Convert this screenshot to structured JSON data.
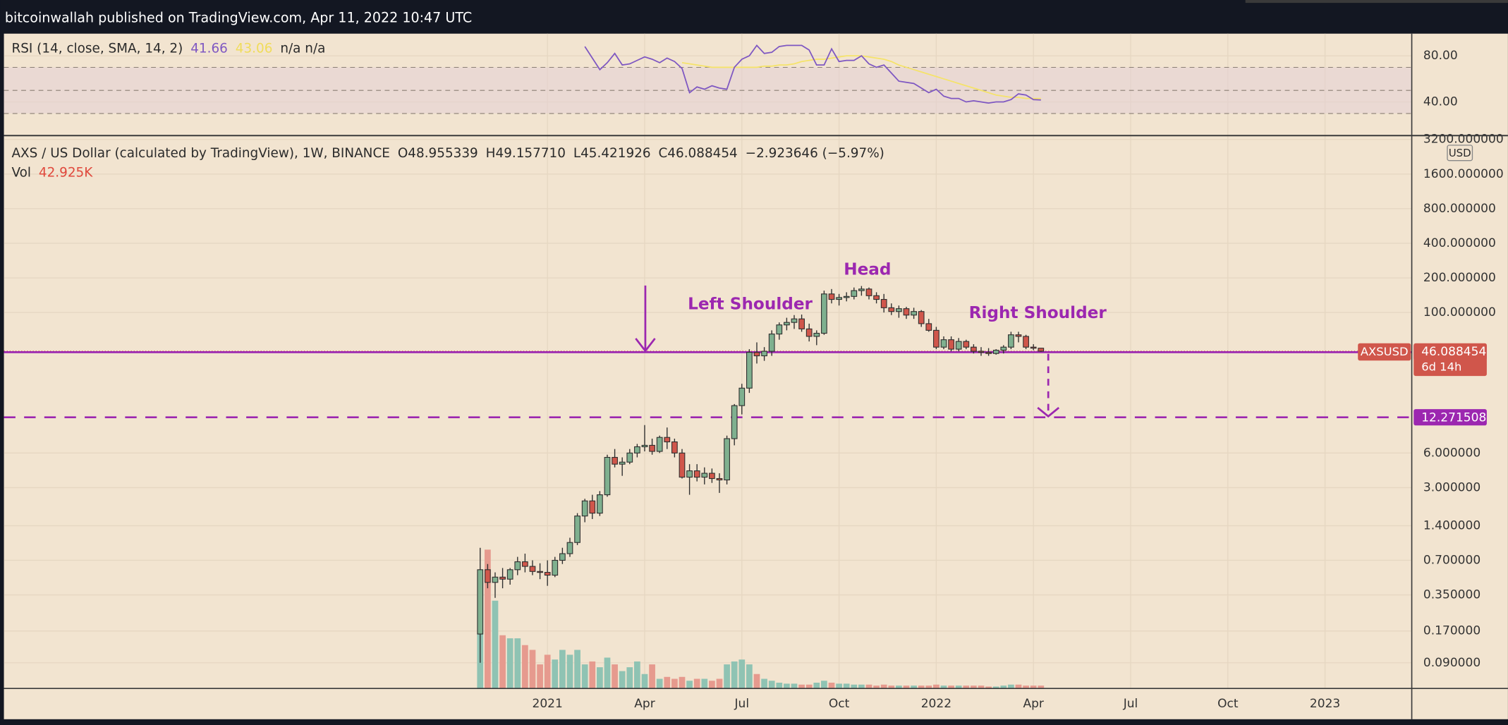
{
  "header": {
    "publisher": "bitcoinwallah published on TradingView.com, Apr 11, 2022 10:47 UTC"
  },
  "chart_data": {
    "type": "candlestick",
    "title": "AXS / US Dollar (calculated by TradingView), 1W, BINANCE",
    "ohlc_text": [
      "O48.955339",
      "H49.157710",
      "L45.421926",
      "C46.088454",
      "−2.923646 (−5.97%)"
    ],
    "volume_title": "Vol",
    "volume_text": "42.925K",
    "rsi_title": "RSI (14, close, SMA, 14, 2)",
    "rsi_na": "n/a  n/a",
    "symbol": "AXSUSD",
    "countdown": "6d 14h",
    "currency": "USD",
    "annotations": [
      "Head",
      "Left Shoulder",
      "Right Shoulder"
    ],
    "log_scale": true,
    "grid": true,
    "up_color": "#7fb08f",
    "down_color": "#d0564b",
    "up_volume_color": "#8fc3b3",
    "down_volume_color": "#e69a8e",
    "rsi_color": "#7e57c2",
    "sma_color": "#f5e36a",
    "level_color": "#9c27b0",
    "price_color": "#d0564b",
    "xlim": [
      -63.7,
      124.6
    ],
    "xticks": [
      {
        "value": 9,
        "label": "2021"
      },
      {
        "value": 22,
        "label": "Apr"
      },
      {
        "value": 35,
        "label": "Jul"
      },
      {
        "value": 48,
        "label": "Oct"
      },
      {
        "value": 61,
        "label": "2022"
      },
      {
        "value": 74,
        "label": "Apr"
      },
      {
        "value": 87,
        "label": "Jul"
      },
      {
        "value": 100,
        "label": "Oct"
      },
      {
        "value": 113,
        "label": "2023"
      }
    ],
    "ylim": [
      0.0538,
      3390
    ],
    "yticks": [
      {
        "value": 3200,
        "label": "3200.000000"
      },
      {
        "value": 1600,
        "label": "1600.000000"
      },
      {
        "value": 800,
        "label": "800.000000"
      },
      {
        "value": 400,
        "label": "400.000000"
      },
      {
        "value": 200,
        "label": "200.000000"
      },
      {
        "value": 100,
        "label": "100.000000"
      },
      {
        "value": 6,
        "label": "6.000000"
      },
      {
        "value": 3,
        "label": "3.000000"
      },
      {
        "value": 1.4,
        "label": "1.400000"
      },
      {
        "value": 0.7,
        "label": "0.700000"
      },
      {
        "value": 0.35,
        "label": "0.350000"
      },
      {
        "value": 0.17,
        "label": "0.170000"
      },
      {
        "value": 0.09,
        "label": "0.090000"
      }
    ],
    "y2lim": [
      0,
      8300000
    ],
    "rsi_lim": [
      11.7,
      99.2
    ],
    "rsi_ticks": [
      {
        "value": 80,
        "label": "80.00"
      },
      {
        "value": 40,
        "label": "40.00"
      }
    ],
    "rsi_levels": [
      70,
      50,
      30
    ],
    "neckline": 45.169175,
    "target": 12.271508,
    "open": [
      0.16,
      0.58,
      0.45,
      0.5,
      0.48,
      0.58,
      0.68,
      0.62,
      0.56,
      0.55,
      0.52,
      0.7,
      0.8,
      1.0,
      1.7,
      2.3,
      1.8,
      2.6,
      5.5,
      4.8,
      5.0,
      6.0,
      6.8,
      7.0,
      6.2,
      8.2,
      7.5,
      6.0,
      3.7,
      4.2,
      3.7,
      4.0,
      3.6,
      3.5,
      8.0,
      15.5,
      22,
      45,
      42,
      46,
      65,
      78,
      82,
      88,
      72,
      62,
      66,
      145,
      130,
      135,
      138,
      155,
      160,
      140,
      130,
      110,
      102,
      108,
      95,
      102,
      80,
      70,
      50,
      58,
      48,
      56,
      50,
      46,
      45,
      44,
      47,
      50,
      64,
      62,
      50,
      48.955339
    ],
    "high": [
      0.9,
      0.65,
      0.55,
      0.6,
      0.6,
      0.75,
      0.8,
      0.7,
      0.66,
      0.7,
      0.75,
      0.9,
      1.1,
      1.8,
      2.4,
      2.6,
      2.8,
      5.8,
      6.5,
      5.5,
      6.5,
      7.2,
      10.5,
      8.0,
      8.5,
      10.0,
      8.0,
      6.5,
      4.8,
      4.8,
      4.5,
      4.4,
      4.0,
      8.5,
      16,
      24,
      48,
      55,
      50,
      70,
      82,
      90,
      95,
      96,
      80,
      70,
      155,
      160,
      145,
      150,
      165,
      170,
      165,
      150,
      145,
      120,
      115,
      112,
      110,
      105,
      88,
      75,
      62,
      62,
      60,
      58,
      53,
      50,
      49,
      48,
      52,
      68,
      68,
      64,
      53,
      49.15771
    ],
    "low": [
      0.09,
      0.4,
      0.33,
      0.4,
      0.43,
      0.52,
      0.55,
      0.52,
      0.48,
      0.42,
      0.5,
      0.65,
      0.75,
      0.95,
      1.5,
      1.6,
      1.7,
      2.5,
      4.5,
      3.8,
      4.8,
      5.5,
      6.2,
      5.8,
      6.0,
      6.5,
      5.5,
      3.6,
      2.6,
      3.4,
      3.2,
      3.3,
      2.7,
      3.2,
      7.0,
      13,
      20,
      36,
      38,
      42,
      58,
      70,
      72,
      68,
      56,
      52,
      64,
      120,
      115,
      125,
      130,
      140,
      130,
      120,
      100,
      95,
      90,
      88,
      88,
      75,
      68,
      48,
      48,
      46,
      46,
      48,
      44,
      42,
      42,
      43,
      44,
      48,
      55,
      48,
      47,
      45.421926
    ],
    "close": [
      0.58,
      0.45,
      0.5,
      0.48,
      0.58,
      0.68,
      0.62,
      0.56,
      0.55,
      0.52,
      0.7,
      0.8,
      1.0,
      1.7,
      2.3,
      1.8,
      2.6,
      5.5,
      4.8,
      5.0,
      6.0,
      6.8,
      7.0,
      6.2,
      8.2,
      7.5,
      6.0,
      3.7,
      4.2,
      3.7,
      4.0,
      3.6,
      3.5,
      8.0,
      15.5,
      22,
      45,
      42,
      46,
      65,
      78,
      82,
      88,
      72,
      62,
      66,
      145,
      130,
      135,
      138,
      155,
      160,
      140,
      130,
      110,
      102,
      108,
      95,
      102,
      80,
      70,
      50,
      58,
      48,
      56,
      50,
      46,
      45,
      44,
      47,
      50,
      64,
      62,
      50,
      48.96,
      46.088454
    ],
    "volume": [
      1725000,
      2088000,
      1320000,
      800000,
      754000,
      754000,
      652000,
      580000,
      362000,
      507000,
      435000,
      580000,
      507000,
      580000,
      362000,
      406000,
      319000,
      464000,
      362000,
      261000,
      319000,
      406000,
      217000,
      362000,
      145000,
      174000,
      145000,
      174000,
      116000,
      145000,
      145000,
      116000,
      145000,
      362000,
      406000,
      435000,
      362000,
      217000,
      145000,
      116000,
      87000,
      72000,
      72000,
      58000,
      58000,
      87000,
      116000,
      87000,
      72000,
      72000,
      58000,
      58000,
      58000,
      43000,
      58000,
      43000,
      43000,
      43000,
      43000,
      43000,
      43000,
      58000,
      43000,
      43000,
      43000,
      43000,
      43000,
      43000,
      29000,
      29000,
      43000,
      58000,
      58000,
      43000,
      43000,
      42925
    ],
    "rsi": [
      null,
      null,
      null,
      null,
      null,
      null,
      null,
      null,
      null,
      null,
      null,
      null,
      null,
      null,
      88,
      78,
      68,
      74,
      82,
      72,
      73,
      76,
      79,
      77,
      74,
      78,
      75,
      69,
      48,
      53,
      51,
      54,
      52,
      51,
      70,
      77,
      80,
      89,
      82,
      83,
      88,
      89,
      89,
      89,
      85,
      72,
      72,
      86,
      75,
      76,
      76,
      80,
      73,
      70,
      72,
      65,
      58,
      57,
      56,
      52,
      48,
      51,
      45,
      43,
      43,
      40,
      41,
      40,
      39,
      40,
      40,
      42,
      47,
      46,
      42,
      41.66
    ],
    "rsi_sma": [
      null,
      null,
      null,
      null,
      null,
      null,
      null,
      null,
      null,
      null,
      null,
      null,
      null,
      null,
      null,
      null,
      null,
      null,
      null,
      null,
      null,
      null,
      null,
      null,
      null,
      null,
      null,
      74,
      73,
      72,
      71,
      70,
      70,
      70,
      70,
      70,
      70,
      70,
      71,
      71,
      72,
      72,
      73,
      75,
      76,
      77,
      77,
      78,
      79,
      80,
      80,
      80,
      79,
      78,
      77,
      75,
      72,
      70,
      68,
      66,
      64,
      62,
      60,
      58,
      56,
      54,
      52,
      50,
      48,
      46,
      45,
      44,
      44,
      43,
      43,
      43.06
    ]
  }
}
